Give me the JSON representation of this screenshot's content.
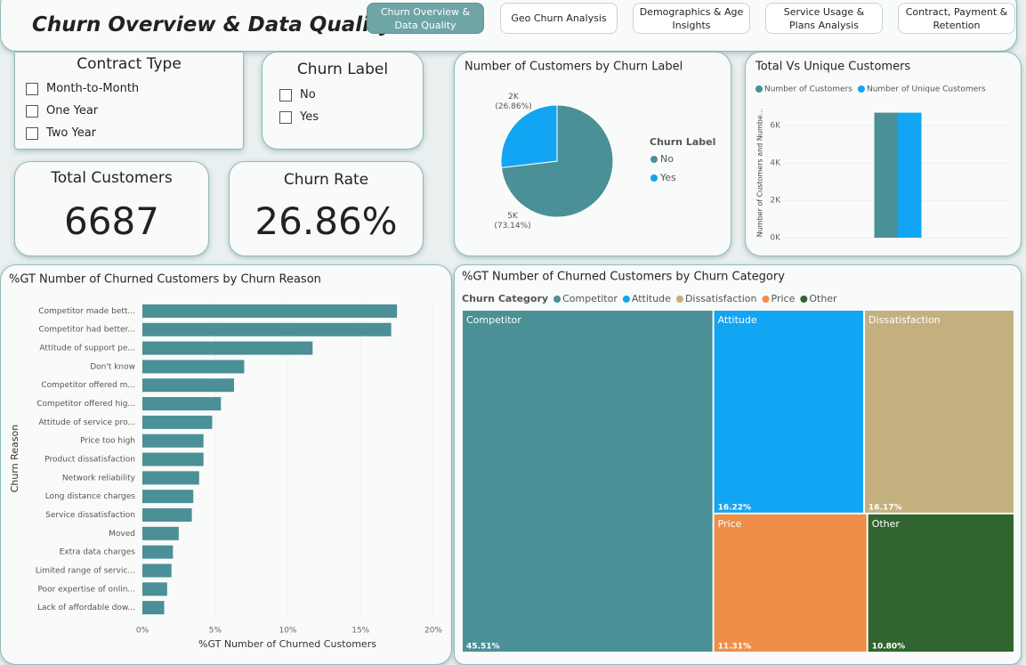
{
  "header": {
    "title": "Churn Overview & Data Quality"
  },
  "tabs": [
    "Churn Overview & Data Quality",
    "Geo Churn Analysis",
    "Demographics & Age Insights",
    "Service Usage & Plans Analysis",
    "Contract, Payment & Retention"
  ],
  "active_tab": 0,
  "slicers": [
    {
      "title": "Contract Type",
      "options": [
        "Month-to-Month",
        "One Year",
        "Two Year"
      ]
    },
    {
      "title": "Churn Label",
      "options": [
        "No",
        "Yes"
      ]
    }
  ],
  "cards": [
    {
      "label": "Total Customers",
      "value": 6687
    },
    {
      "label": "Churn Rate",
      "value": "26.86%"
    }
  ],
  "chart_data": [
    {
      "type": "pie",
      "title": "Number of Customers by Churn Label",
      "legend_title": "Churn Label",
      "categories": [
        "No",
        "Yes"
      ],
      "values": [
        4891,
        1796
      ],
      "value_labels": [
        "5K (73.14%)",
        "2K (26.86%)"
      ],
      "colors": [
        "#4b9096",
        "#12a5f3"
      ],
      "legend": "right"
    },
    {
      "type": "bar",
      "title": "Total Vs Unique Customers",
      "ylabel": "Number of Customers and Numbe...",
      "categories": [
        null
      ],
      "series": [
        {
          "name": "Number of Customers",
          "color": "#4b9096",
          "values": [
            6687
          ]
        },
        {
          "name": "Number of Unique Customers",
          "color": "#12a5f3",
          "values": [
            6687
          ]
        }
      ],
      "ylim": [
        0,
        7000
      ],
      "yticks": [
        {
          "value": 0,
          "label": "0K"
        },
        {
          "value": 2000,
          "label": "2K"
        },
        {
          "value": 4000,
          "label": "4K"
        },
        {
          "value": 6000,
          "label": "6K"
        }
      ],
      "grid": true,
      "legend": "top-left"
    },
    {
      "type": "hbar",
      "title": "%GT Number of Churned Customers by Churn Reason",
      "xlabel": "%GT Number of Churned Customers",
      "ylabel": "Churn Reason",
      "categories": [
        "Competitor made bett...",
        "Competitor had better...",
        "Attitude of support pe...",
        "Don't know",
        "Competitor offered m...",
        "Competitor offered hig...",
        "Attitude of service pro...",
        "Price too high",
        "Product dissatisfaction",
        "Network reliability",
        "Long distance charges",
        "Service dissatisfaction",
        "Moved",
        "Extra data charges",
        "Limited range of servic...",
        "Poor expertise of onlin...",
        "Lack of affordable dow..."
      ],
      "values": [
        17.5,
        17.1,
        11.7,
        7.0,
        6.3,
        5.4,
        4.8,
        4.2,
        4.2,
        3.9,
        3.5,
        3.4,
        2.5,
        2.1,
        2.0,
        1.7,
        1.5
      ],
      "color": "#4b9096",
      "xlim": [
        0,
        20.5
      ],
      "xticks": [
        {
          "value": 0,
          "label": "0%"
        },
        {
          "value": 5,
          "label": "5%"
        },
        {
          "value": 10,
          "label": "10%"
        },
        {
          "value": 15,
          "label": "15%"
        },
        {
          "value": 20,
          "label": "20%"
        }
      ],
      "grid": true
    },
    {
      "type": "treemap",
      "title": "%GT Number of Churned Customers by Churn Category",
      "legend_title": "Churn Category",
      "categories": [
        "Competitor",
        "Attitude",
        "Dissatisfaction",
        "Price",
        "Other"
      ],
      "values": [
        45.51,
        16.22,
        16.17,
        11.31,
        10.8
      ],
      "value_labels": [
        "45.51%",
        "16.22%",
        "16.17%",
        "11.31%",
        "10.80%"
      ],
      "colors": [
        "#4b9096",
        "#12a5f3",
        "#c4b07e",
        "#ee8e48",
        "#30652f"
      ],
      "legend": "top-left"
    }
  ]
}
